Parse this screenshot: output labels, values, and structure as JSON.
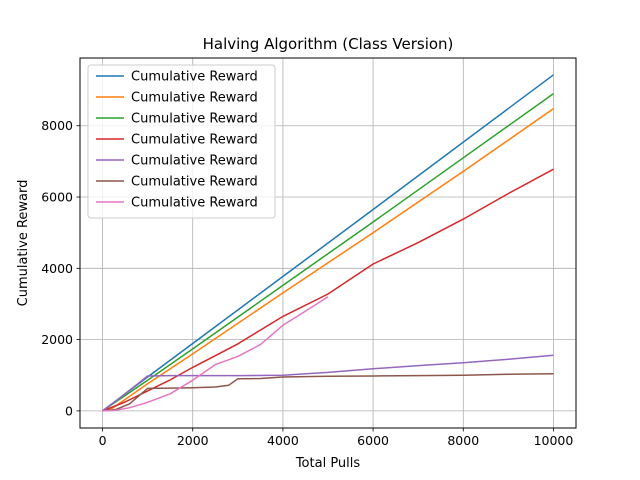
{
  "chart_data": {
    "type": "line",
    "title": "Halving Algorithm (Class Version)",
    "xlabel": "Total Pulls",
    "ylabel": "Cumulative Reward",
    "xlim": [
      -500,
      10500
    ],
    "ylim": [
      -480,
      9900
    ],
    "x_ticks": [
      0,
      2000,
      4000,
      6000,
      8000,
      10000
    ],
    "y_ticks": [
      0,
      2000,
      4000,
      6000,
      8000
    ],
    "grid": true,
    "legend_position": "top-left",
    "series": [
      {
        "name": "Cumulative Reward",
        "color": "#1f77b4",
        "points": [
          [
            0,
            0
          ],
          [
            1000,
            950
          ],
          [
            2000,
            1890
          ],
          [
            4000,
            3770
          ],
          [
            6000,
            5650
          ],
          [
            8000,
            7540
          ],
          [
            10000,
            9430
          ]
        ]
      },
      {
        "name": "Cumulative Reward",
        "color": "#ff7f0e",
        "points": [
          [
            0,
            0
          ],
          [
            200,
            60
          ],
          [
            1000,
            760
          ],
          [
            2000,
            1600
          ],
          [
            4000,
            3310
          ],
          [
            6000,
            5000
          ],
          [
            8000,
            6720
          ],
          [
            10000,
            8480
          ]
        ]
      },
      {
        "name": "Cumulative Reward",
        "color": "#2ca02c",
        "points": [
          [
            0,
            0
          ],
          [
            1000,
            860
          ],
          [
            2000,
            1740
          ],
          [
            4000,
            3520
          ],
          [
            6000,
            5300
          ],
          [
            8000,
            7100
          ],
          [
            10000,
            8900
          ]
        ]
      },
      {
        "name": "Cumulative Reward",
        "color": "#d62728",
        "points": [
          [
            0,
            0
          ],
          [
            500,
            250
          ],
          [
            1000,
            560
          ],
          [
            1500,
            870
          ],
          [
            2000,
            1220
          ],
          [
            3000,
            1880
          ],
          [
            4000,
            2650
          ],
          [
            5000,
            3280
          ],
          [
            6000,
            4120
          ],
          [
            7000,
            4720
          ],
          [
            8000,
            5380
          ],
          [
            9000,
            6100
          ],
          [
            10000,
            6780
          ]
        ]
      },
      {
        "name": "Cumulative Reward",
        "color": "#9467bd",
        "points": [
          [
            0,
            0
          ],
          [
            300,
            280
          ],
          [
            600,
            580
          ],
          [
            1000,
            980
          ],
          [
            1500,
            990
          ],
          [
            2000,
            990
          ],
          [
            3000,
            990
          ],
          [
            4000,
            1000
          ],
          [
            5000,
            1080
          ],
          [
            6000,
            1180
          ],
          [
            7000,
            1270
          ],
          [
            8000,
            1350
          ],
          [
            9000,
            1450
          ],
          [
            10000,
            1560
          ]
        ]
      },
      {
        "name": "Cumulative Reward",
        "color": "#8c564b",
        "points": [
          [
            0,
            0
          ],
          [
            300,
            40
          ],
          [
            600,
            200
          ],
          [
            1000,
            630
          ],
          [
            1500,
            640
          ],
          [
            2000,
            650
          ],
          [
            2500,
            670
          ],
          [
            2800,
            720
          ],
          [
            3000,
            900
          ],
          [
            3500,
            910
          ],
          [
            4000,
            950
          ],
          [
            5000,
            970
          ],
          [
            6000,
            980
          ],
          [
            7000,
            990
          ],
          [
            8000,
            1000
          ],
          [
            9000,
            1030
          ],
          [
            10000,
            1040
          ]
        ]
      },
      {
        "name": "Cumulative Reward",
        "color": "#e377c2",
        "points": [
          [
            0,
            0
          ],
          [
            300,
            20
          ],
          [
            600,
            90
          ],
          [
            1000,
            240
          ],
          [
            1500,
            480
          ],
          [
            2000,
            860
          ],
          [
            2500,
            1300
          ],
          [
            3000,
            1530
          ],
          [
            3500,
            1860
          ],
          [
            4000,
            2400
          ],
          [
            4500,
            2800
          ],
          [
            5000,
            3200
          ]
        ]
      }
    ]
  }
}
